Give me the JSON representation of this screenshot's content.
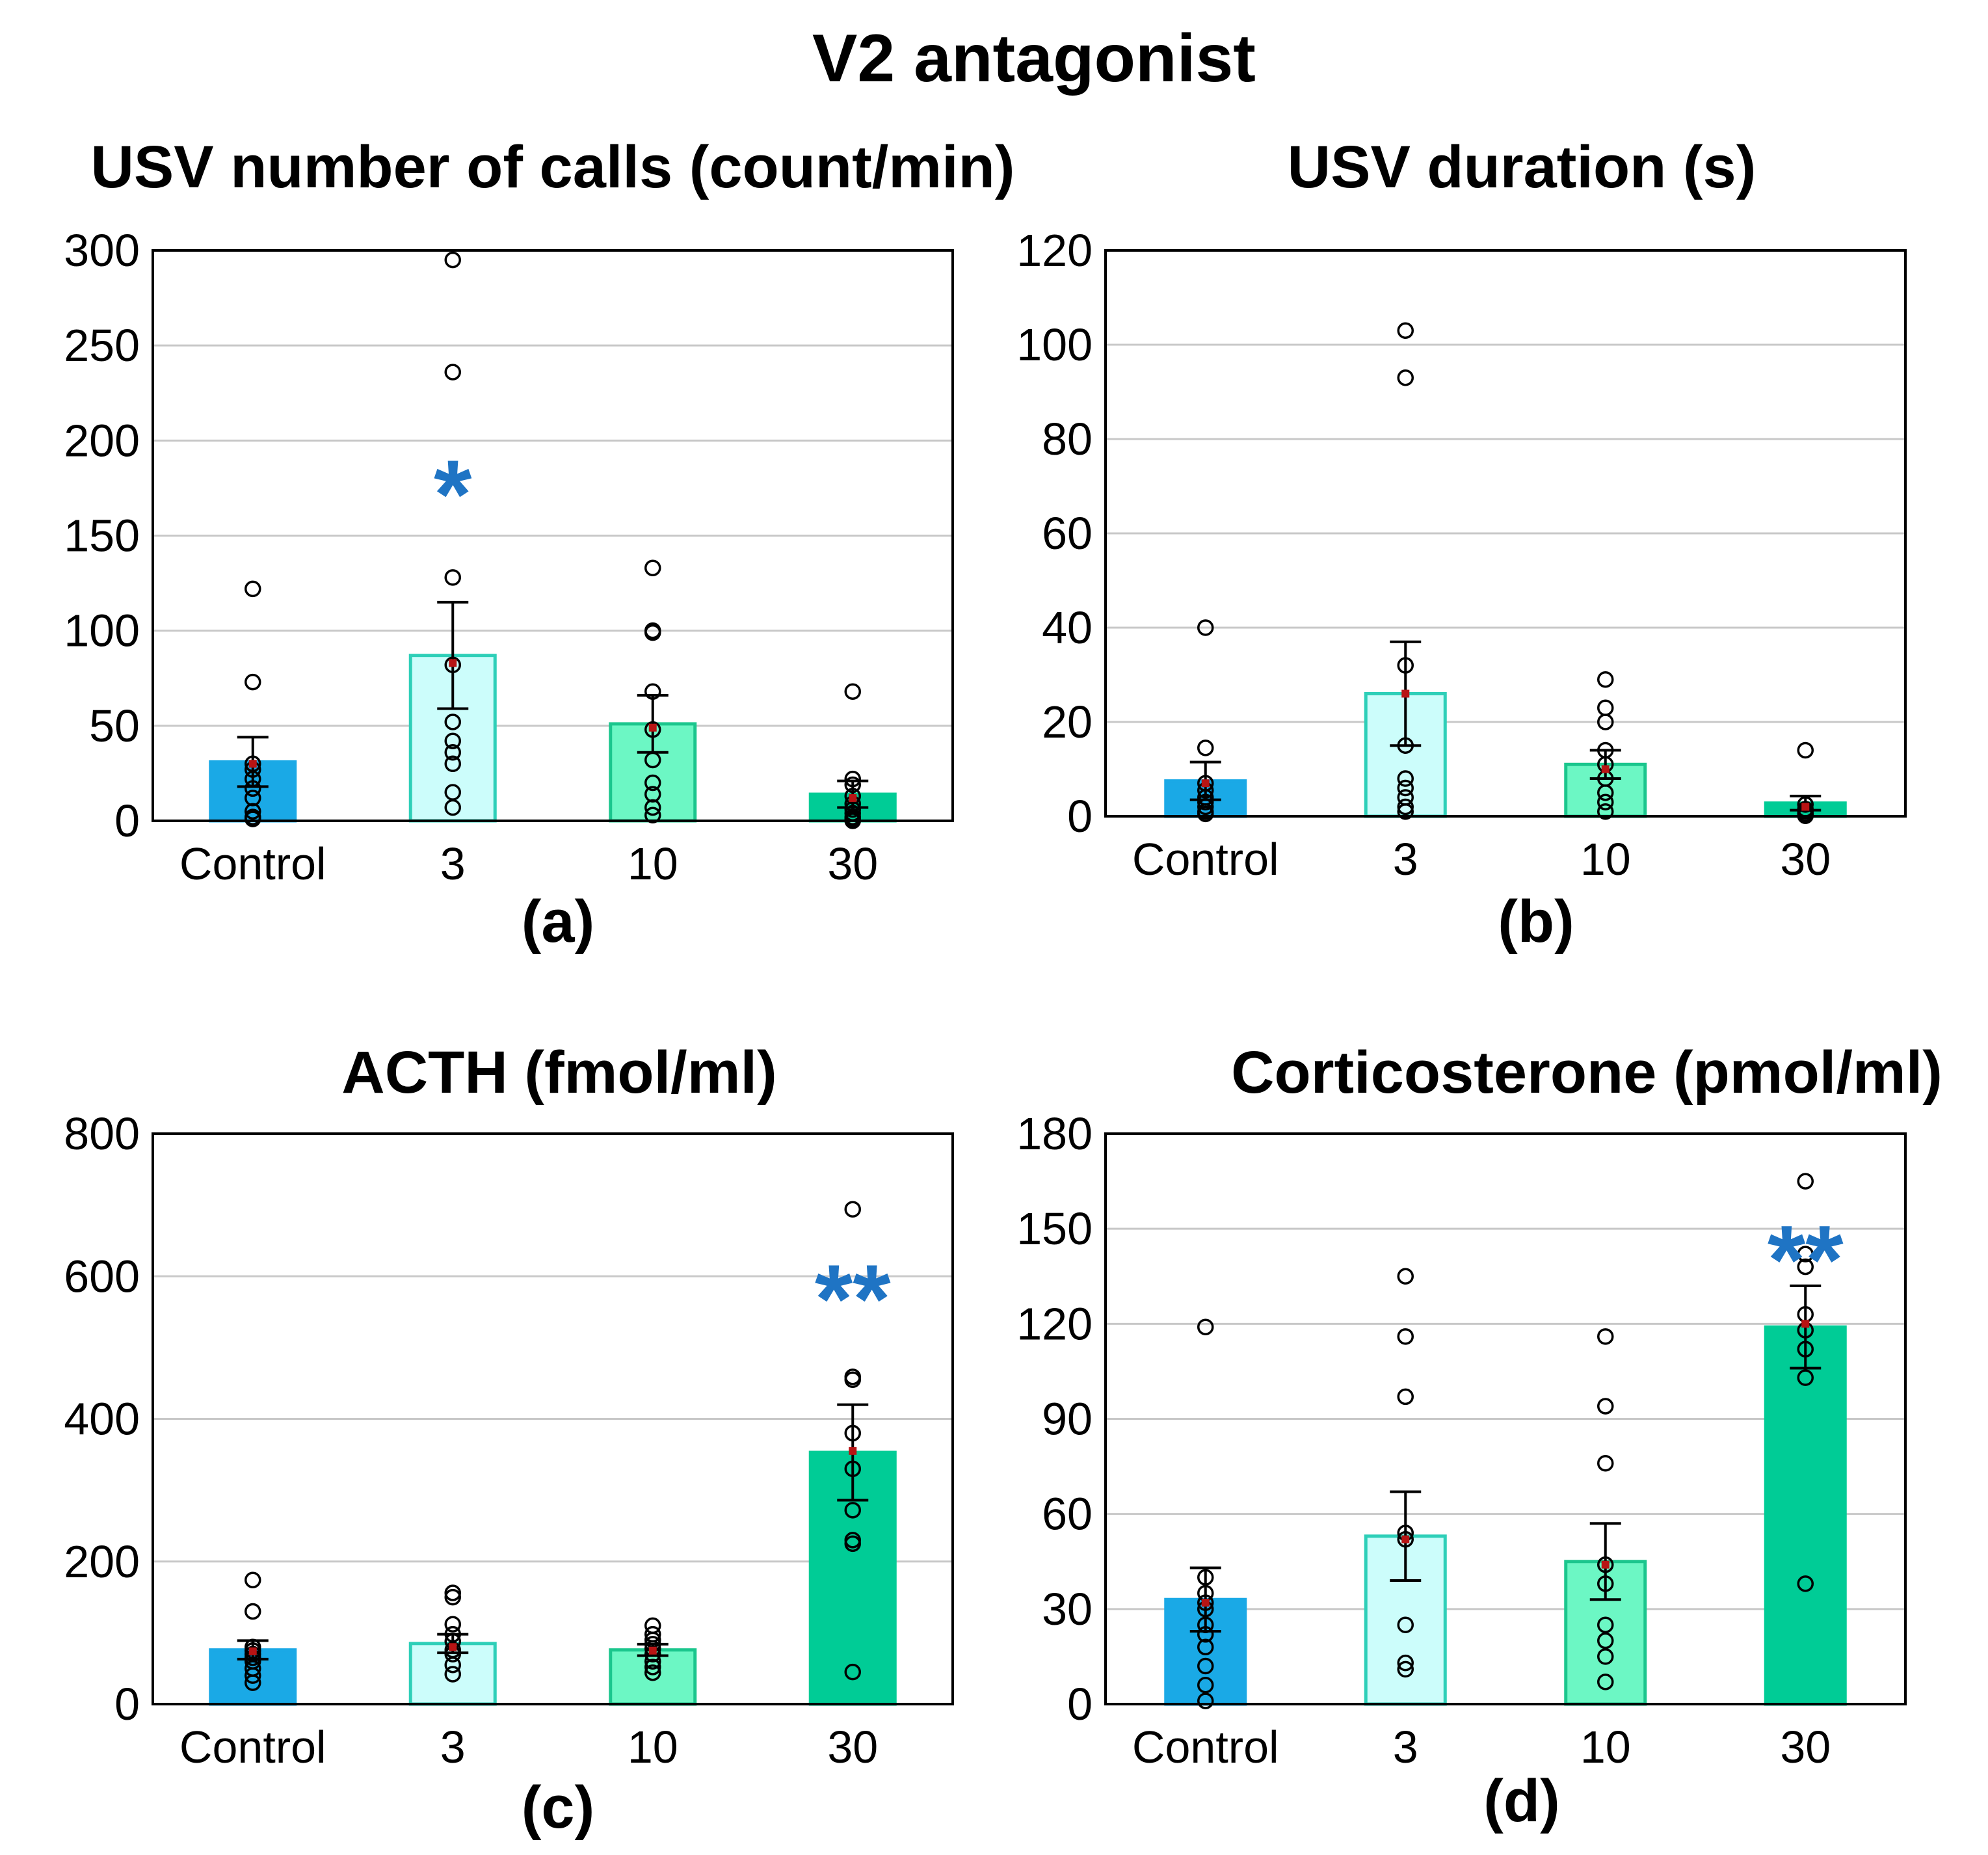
{
  "figure": {
    "title": "V2 antagonist",
    "colors": {
      "control": "#1aa9e6",
      "dose3": "#ccfdfb",
      "dose10": "#6cf7c4",
      "dose30": "#00cc96",
      "outline3": "#2ecfb8",
      "outline10": "#1bc68d",
      "grid": "#c8c8c8",
      "significance": "#1f74c4",
      "median": "#b81414"
    }
  },
  "chart_data": [
    {
      "id": "a",
      "type": "bar",
      "title": "USV number of calls (count/min)",
      "panel_label": "(a)",
      "categories": [
        "Control",
        "3",
        "10",
        "30"
      ],
      "ylim": [
        0,
        300
      ],
      "yticks": [
        0,
        50,
        100,
        150,
        200,
        250,
        300
      ],
      "ytick_labels": [
        "0",
        "50",
        "100",
        "150",
        "200",
        "250",
        "300"
      ],
      "values": [
        31,
        87,
        51,
        14
      ],
      "sem": [
        13,
        28,
        15,
        7
      ],
      "medians": [
        30,
        83,
        49,
        12
      ],
      "points": [
        [
          122,
          73,
          30,
          27,
          22,
          17,
          12,
          5,
          2,
          1
        ],
        [
          295,
          236,
          128,
          82,
          52,
          42,
          36,
          30,
          15,
          7
        ],
        [
          133,
          100,
          99,
          68,
          48,
          32,
          20,
          14,
          7,
          3
        ],
        [
          68,
          22,
          19,
          13,
          9,
          6,
          4,
          2,
          1,
          0
        ]
      ],
      "significance": [
        "",
        "*",
        "",
        ""
      ],
      "significance_y": [
        0,
        178,
        0,
        0
      ]
    },
    {
      "id": "b",
      "type": "bar",
      "title": "USV duration (s)",
      "panel_label": "(b)",
      "categories": [
        "Control",
        "3",
        "10",
        "30"
      ],
      "ylim": [
        0,
        120
      ],
      "yticks": [
        0,
        20,
        40,
        60,
        80,
        100,
        120
      ],
      "ytick_labels": [
        "0",
        "20",
        "40",
        "60",
        "80",
        "100",
        "120"
      ],
      "values": [
        7.5,
        26,
        11,
        2.8
      ],
      "sem": [
        4,
        11,
        3,
        1.5
      ],
      "medians": [
        7,
        26,
        10,
        2
      ],
      "points": [
        [
          40,
          14.5,
          7,
          5.5,
          4,
          3,
          2,
          1,
          0.5
        ],
        [
          103,
          93,
          32,
          15,
          8,
          6,
          4,
          2,
          1
        ],
        [
          29,
          23,
          20,
          14,
          11,
          8,
          5,
          3,
          1
        ],
        [
          14,
          2.5,
          1.5,
          1,
          0.5,
          0.3,
          0.2,
          0.1
        ]
      ],
      "significance": [
        "",
        "",
        "",
        ""
      ],
      "significance_y": [
        0,
        0,
        0,
        0
      ]
    },
    {
      "id": "c",
      "type": "bar",
      "title": "ACTH (fmol/ml)",
      "panel_label": "(c)",
      "categories": [
        "Control",
        "3",
        "10",
        "30"
      ],
      "ylim": [
        0,
        800
      ],
      "yticks": [
        0,
        200,
        400,
        600,
        800
      ],
      "ytick_labels": [
        "0",
        "200",
        "400",
        "600",
        "800"
      ],
      "values": [
        76,
        85,
        76,
        353
      ],
      "sem": [
        13,
        13,
        8,
        67
      ],
      "medians": [
        74,
        80,
        75,
        355
      ],
      "points": [
        [
          174,
          130,
          80,
          75,
          70,
          65,
          60,
          50,
          40,
          30
        ],
        [
          156,
          150,
          112,
          98,
          88,
          76,
          70,
          55,
          42
        ],
        [
          110,
          98,
          90,
          84,
          78,
          70,
          60,
          52,
          44
        ],
        [
          694,
          459,
          455,
          380,
          330,
          272,
          225,
          230,
          45
        ]
      ],
      "significance": [
        "",
        "",
        "",
        "**"
      ],
      "significance_y": [
        0,
        0,
        0,
        585
      ]
    },
    {
      "id": "d",
      "type": "bar",
      "title": "Corticosterone (pmol/ml)",
      "panel_label": "(d)",
      "categories": [
        "Control",
        "3",
        "10",
        "30"
      ],
      "ylim": [
        0,
        180
      ],
      "yticks": [
        0,
        30,
        60,
        90,
        120,
        150,
        180
      ],
      "ytick_labels": [
        "0",
        "30",
        "60",
        "90",
        "120",
        "150",
        "180"
      ],
      "values": [
        33,
        53,
        45,
        119
      ],
      "sem": [
        10,
        14,
        12,
        13
      ],
      "medians": [
        32,
        52,
        44,
        120
      ],
      "points": [
        [
          119,
          40,
          35,
          32,
          30,
          25,
          22,
          18,
          12,
          6,
          1
        ],
        [
          135,
          116,
          97,
          54,
          52,
          25,
          13,
          11
        ],
        [
          116,
          94,
          76,
          44,
          38,
          25,
          20,
          15,
          7
        ],
        [
          165,
          142,
          138,
          123,
          118,
          112,
          103,
          38
        ]
      ],
      "significance": [
        "",
        "",
        "",
        "**"
      ],
      "significance_y": [
        0,
        0,
        0,
        144
      ]
    }
  ]
}
